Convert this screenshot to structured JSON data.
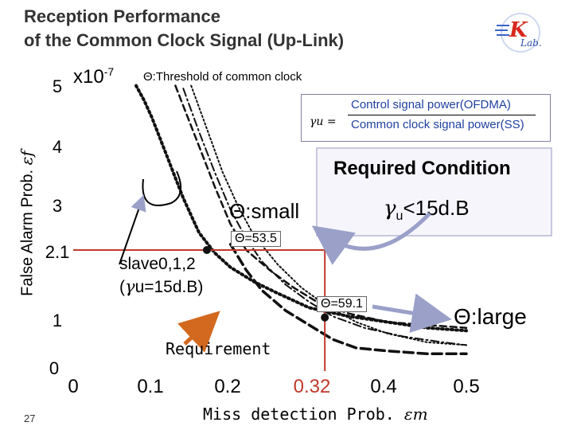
{
  "slide": {
    "title_line1": "Reception Performance",
    "title_line2": "of the Common Clock Signal (Up-Link)",
    "page_number": "27",
    "logo_text": "K Lab."
  },
  "annotations": {
    "exp_label": "x10",
    "exp_power": "-7",
    "threshold_note": "Θ:Threshold of common clock",
    "ratio_symbol": "γu =",
    "ratio_numerator": "Control signal power(OFDMA)",
    "ratio_denominator": "Common clock signal power(SS)",
    "required_condition_title": "Required Condition",
    "required_condition_gamma": "γ",
    "required_condition_sub": "u",
    "required_condition_rest": "<15d.B",
    "theta_small": "Θ:small",
    "theta_large": "Θ:large",
    "theta_53": "Θ=53.5",
    "theta_59": "Θ=59.1",
    "slave_line1": "slave0,1,2",
    "slave_line2_a": "(",
    "slave_line2_g": "γ",
    "slave_line2_b": "u=15d.B)",
    "requirement": "Requirement"
  },
  "chart_data": {
    "type": "line",
    "title": "",
    "xlabel": "Miss detection Prob.",
    "xlabel_symbol": "εm",
    "ylabel": "False Alarm Prob.",
    "ylabel_symbol": "εf",
    "xlim": [
      0,
      0.5
    ],
    "ylim": [
      0,
      5
    ],
    "x_ticks": [
      "0",
      "0.1",
      "0.2",
      "0.32",
      "0.4",
      "0.5"
    ],
    "y_ticks": [
      "0",
      "1",
      "2.1",
      "3",
      "4",
      "5"
    ],
    "requirement": {
      "x": 0.32,
      "y": 2.1
    },
    "operating_points": [
      {
        "label": "Θ=53.5",
        "x": 0.17,
        "y": 2.1
      },
      {
        "label": "Θ=59.1",
        "x": 0.32,
        "y": 0.93
      }
    ],
    "series": [
      {
        "style": "dotted-thick",
        "x": [
          0.08,
          0.09,
          0.1,
          0.11,
          0.12,
          0.13,
          0.14,
          0.15,
          0.16,
          0.18,
          0.2,
          0.23,
          0.26,
          0.3,
          0.35,
          0.4,
          0.45,
          0.5
        ],
        "y": [
          4.95,
          4.7,
          4.4,
          4.05,
          3.7,
          3.35,
          3.0,
          2.7,
          2.4,
          2.05,
          1.8,
          1.55,
          1.35,
          1.1,
          0.95,
          0.85,
          0.75,
          0.7
        ]
      },
      {
        "style": "dashed",
        "x": [
          0.13,
          0.14,
          0.16,
          0.18,
          0.2,
          0.22,
          0.25,
          0.28,
          0.31,
          0.35,
          0.4,
          0.45,
          0.5
        ],
        "y": [
          4.95,
          4.6,
          3.9,
          3.2,
          2.55,
          2.1,
          1.75,
          1.45,
          1.2,
          1.0,
          0.85,
          0.8,
          0.75
        ]
      },
      {
        "style": "dash-dot",
        "x": [
          0.14,
          0.16,
          0.18,
          0.2,
          0.22,
          0.24,
          0.27,
          0.3,
          0.33,
          0.37,
          0.42,
          0.47,
          0.5
        ],
        "y": [
          4.9,
          4.15,
          3.45,
          2.8,
          2.3,
          1.9,
          1.5,
          1.2,
          0.95,
          0.75,
          0.6,
          0.5,
          0.45
        ]
      },
      {
        "style": "dotted-thin",
        "x": [
          0.15,
          0.17,
          0.19,
          0.21,
          0.23,
          0.26,
          0.29,
          0.32,
          0.36,
          0.4,
          0.45,
          0.5
        ],
        "y": [
          4.95,
          4.2,
          3.45,
          2.85,
          2.35,
          1.85,
          1.45,
          1.15,
          0.85,
          0.65,
          0.5,
          0.45
        ]
      },
      {
        "style": "dashed-thick",
        "x": [
          0.2,
          0.22,
          0.24,
          0.27,
          0.3,
          0.33,
          0.36,
          0.4,
          0.45,
          0.5
        ],
        "y": [
          2.2,
          1.75,
          1.4,
          1.05,
          0.8,
          0.55,
          0.4,
          0.35,
          0.3,
          0.3
        ]
      }
    ],
    "colors": {
      "requirement": "#c0392b",
      "arrow": "#9aa0c8",
      "pointer": "#d2691e"
    }
  }
}
